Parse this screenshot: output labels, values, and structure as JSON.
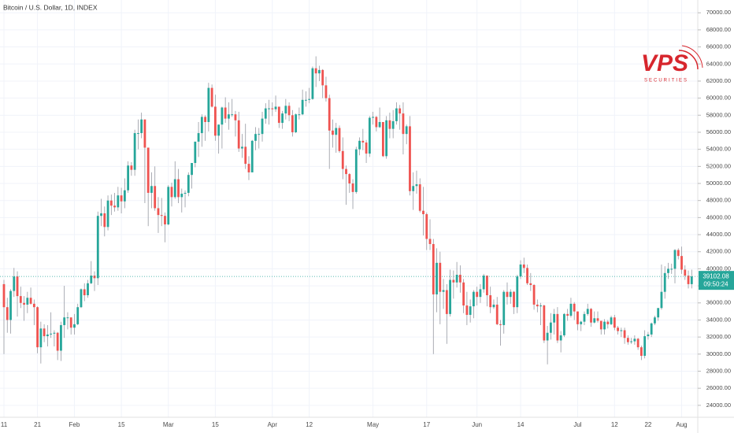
{
  "chart_data": {
    "type": "candlestick",
    "title": "Bitcoin / U.S. Dollar, 1D, INDEX",
    "up_color": "#26a69a",
    "down_color": "#ef5350",
    "grid": true,
    "countdown": "09:50:24",
    "logo": {
      "name": "VPS",
      "tagline": "SECURITIES"
    },
    "categories": [
      "11",
      null,
      null,
      null,
      null,
      null,
      null,
      null,
      null,
      null,
      "21",
      null,
      null,
      null,
      null,
      null,
      null,
      null,
      null,
      null,
      null,
      "Feb",
      null,
      null,
      null,
      null,
      null,
      null,
      null,
      null,
      null,
      null,
      null,
      null,
      null,
      "15",
      null,
      null,
      null,
      null,
      null,
      null,
      null,
      null,
      null,
      null,
      null,
      null,
      null,
      "Mar",
      null,
      null,
      null,
      null,
      null,
      null,
      null,
      null,
      null,
      null,
      null,
      null,
      null,
      "15",
      null,
      null,
      null,
      null,
      null,
      null,
      null,
      null,
      null,
      null,
      null,
      null,
      null,
      null,
      null,
      null,
      "Apr",
      null,
      null,
      null,
      null,
      null,
      null,
      null,
      null,
      null,
      null,
      "12",
      null,
      null,
      null,
      null,
      null,
      null,
      null,
      null,
      null,
      null,
      null,
      null,
      null,
      null,
      null,
      null,
      null,
      null,
      "May",
      null,
      null,
      null,
      null,
      null,
      null,
      null,
      null,
      null,
      null,
      null,
      null,
      null,
      null,
      null,
      "17",
      null,
      null,
      null,
      null,
      null,
      null,
      null,
      null,
      null,
      null,
      null,
      null,
      null,
      null,
      "Jun",
      null,
      null,
      null,
      null,
      null,
      null,
      null,
      null,
      null,
      null,
      null,
      null,
      "14",
      null,
      null,
      null,
      null,
      null,
      null,
      null,
      null,
      null,
      null,
      null,
      null,
      null,
      null,
      null,
      null,
      "Jul",
      null,
      null,
      null,
      null,
      null,
      null,
      null,
      null,
      null,
      null,
      "12",
      null,
      null,
      null,
      null,
      null,
      null,
      null,
      null,
      null,
      "22",
      null,
      null,
      null,
      null,
      null,
      null,
      null,
      null,
      null,
      "Aug",
      null,
      null,
      null
    ],
    "open": [
      38200,
      35500,
      34000,
      37400,
      39100,
      36800,
      36000,
      35800,
      36600,
      35900,
      35500,
      30800,
      33000,
      32100,
      32300,
      32400,
      32500,
      30400,
      33400,
      34300,
      34300,
      33100,
      33500,
      35500,
      37600,
      36900,
      38300,
      39200,
      38900,
      46200,
      46500,
      44900,
      48000,
      47400,
      47200,
      48600,
      47900,
      49200,
      52100,
      51600,
      55900,
      55900,
      57500,
      54200,
      48900,
      49700,
      47100,
      46300,
      46200,
      45200,
      49600,
      48400,
      50500,
      48400,
      48800,
      48900,
      51000,
      52400,
      54900,
      55900,
      57800,
      57200,
      61200,
      59000,
      55600,
      56900,
      58900,
      57600,
      58100,
      58100,
      57400,
      54100,
      54300,
      52300,
      51300,
      55000,
      55800,
      55800,
      57600,
      58800,
      58800,
      58700,
      59000,
      57100,
      58200,
      59100,
      58000,
      56000,
      58100,
      58100,
      59800,
      59800,
      59900,
      63500,
      62900,
      63300,
      61500,
      60000,
      56200,
      55700,
      56500,
      53800,
      51700,
      51100,
      50000,
      49000,
      54000,
      55000,
      54800,
      53500,
      57700,
      57800,
      56600,
      57200,
      53200,
      57400,
      56400,
      57300,
      58800,
      58200,
      55800,
      56700,
      49100,
      49700,
      49900,
      46800,
      46400,
      43500,
      42900,
      37000,
      40700,
      37300,
      37500,
      34700,
      38700,
      38400,
      39300,
      38400,
      35700,
      34600,
      35600,
      37300,
      36700,
      37600,
      39200,
      36900,
      35500,
      35800,
      33500,
      33400,
      37300,
      36700,
      37300,
      35500,
      39100,
      40500,
      40100,
      38300,
      38100,
      35800,
      35600,
      35700,
      31600,
      32500,
      33700,
      34700,
      31600,
      32200,
      34700,
      34500,
      35900,
      35000,
      33500,
      33800,
      34700,
      35300,
      33700,
      34200,
      33900,
      32900,
      33800,
      33500,
      34300,
      33100,
      32700,
      32800,
      31900,
      31400,
      31500,
      31800,
      30800,
      29800,
      32100,
      32300,
      33600,
      34300,
      35400,
      37300,
      39500,
      40000,
      40000,
      42200,
      41500,
      39900,
      39200,
      38200
    ],
    "high": [
      38700,
      36600,
      37600,
      40100,
      39700,
      37900,
      36800,
      37300,
      37800,
      36400,
      35600,
      33800,
      33500,
      33400,
      34900,
      32800,
      32600,
      33800,
      38000,
      34900,
      34300,
      34700,
      35900,
      37700,
      38300,
      38700,
      40900,
      39700,
      46700,
      48200,
      47300,
      48600,
      48700,
      48900,
      49600,
      49500,
      50600,
      52600,
      52500,
      56300,
      57500,
      58300,
      57500,
      54200,
      51300,
      52000,
      48400,
      48300,
      46600,
      49800,
      50100,
      52600,
      51700,
      49400,
      49200,
      51300,
      52400,
      54900,
      57200,
      58100,
      58000,
      61800,
      61600,
      60400,
      56900,
      59000,
      60100,
      59500,
      59900,
      58500,
      58400,
      55800,
      57000,
      53200,
      55100,
      56600,
      56500,
      58400,
      59400,
      59800,
      59500,
      60300,
      59000,
      58500,
      59900,
      59500,
      58600,
      58200,
      58900,
      61000,
      60800,
      61200,
      63700,
      64900,
      63800,
      63400,
      62500,
      60400,
      57500,
      57100,
      56800,
      55400,
      52100,
      51200,
      50500,
      54300,
      55400,
      56400,
      55100,
      57900,
      58400,
      57900,
      58900,
      57200,
      57900,
      58300,
      58600,
      59500,
      59200,
      59500,
      56900,
      57900,
      51300,
      51500,
      50600,
      49600,
      46600,
      45800,
      43500,
      42400,
      42000,
      38800,
      38200,
      39900,
      39800,
      40800,
      40400,
      38800,
      37300,
      36400,
      37500,
      37900,
      38200,
      39400,
      39200,
      37900,
      36400,
      36700,
      34000,
      37500,
      38400,
      37600,
      37400,
      39300,
      41000,
      41300,
      40500,
      39500,
      38200,
      36400,
      36000,
      35800,
      33300,
      34800,
      35300,
      35500,
      32700,
      34800,
      35300,
      36600,
      36100,
      35000,
      33900,
      35000,
      35900,
      35400,
      35000,
      35000,
      33900,
      34100,
      34000,
      34500,
      34600,
      33300,
      33100,
      33100,
      32200,
      31900,
      32200,
      31900,
      31000,
      32800,
      32600,
      33700,
      34500,
      35400,
      40500,
      40300,
      40700,
      40600,
      42300,
      42400,
      42600,
      40400,
      39800,
      39900
    ],
    "low": [
      30000,
      32500,
      32400,
      36700,
      34400,
      35400,
      33900,
      34800,
      35800,
      33400,
      30100,
      28900,
      31400,
      30900,
      31900,
      30900,
      29300,
      29200,
      31900,
      32900,
      32300,
      32300,
      33400,
      35400,
      36200,
      36600,
      38200,
      37400,
      38100,
      45000,
      43800,
      44500,
      46300,
      46700,
      46800,
      46500,
      47100,
      48900,
      50900,
      50900,
      54000,
      55300,
      47700,
      45000,
      47100,
      46800,
      44200,
      45000,
      43100,
      45100,
      47300,
      48200,
      47700,
      46600,
      47200,
      48500,
      49400,
      51900,
      53100,
      54300,
      55000,
      56100,
      58900,
      55000,
      53500,
      54100,
      57100,
      56300,
      57800,
      55500,
      53700,
      53000,
      51700,
      50400,
      51300,
      53900,
      54100,
      54900,
      57000,
      56900,
      57900,
      58400,
      56500,
      56400,
      57500,
      57300,
      55500,
      55900,
      57500,
      58000,
      59000,
      59400,
      59800,
      61300,
      62000,
      60000,
      59600,
      51700,
      54200,
      53600,
      53600,
      50500,
      47500,
      48900,
      47000,
      48800,
      53300,
      53900,
      52400,
      53100,
      56900,
      56100,
      56500,
      53100,
      52900,
      55300,
      55300,
      56900,
      56300,
      53400,
      54600,
      48600,
      46900,
      48800,
      46600,
      43900,
      42200,
      42200,
      30000,
      34900,
      33500,
      35300,
      31200,
      34400,
      36500,
      37800,
      37200,
      34800,
      33400,
      33700,
      34200,
      35700,
      36000,
      37200,
      35600,
      34800,
      35300,
      33400,
      31000,
      32400,
      35800,
      35900,
      34700,
      34800,
      38800,
      39500,
      38100,
      37400,
      35200,
      34900,
      33400,
      31300,
      28800,
      31700,
      32300,
      31300,
      30200,
      32000,
      33900,
      34300,
      34000,
      32800,
      32700,
      33400,
      34500,
      33200,
      33600,
      33700,
      32300,
      32300,
      33000,
      33400,
      32800,
      32300,
      32000,
      31200,
      31100,
      31200,
      31100,
      30500,
      29300,
      29500,
      31700,
      32000,
      33400,
      33900,
      35200,
      36500,
      38800,
      39400,
      38300,
      41100,
      39400,
      38700,
      37700,
      37700
    ],
    "close": [
      35500,
      34000,
      37400,
      39100,
      36800,
      36000,
      35800,
      36600,
      35900,
      35500,
      30800,
      33000,
      32100,
      32300,
      32400,
      32500,
      30400,
      33400,
      34300,
      34300,
      33100,
      33500,
      35500,
      37600,
      36900,
      38300,
      39200,
      38900,
      46200,
      46500,
      44900,
      48000,
      47400,
      47200,
      48600,
      47900,
      49200,
      52100,
      51600,
      55900,
      55900,
      57500,
      54200,
      48900,
      49700,
      47100,
      46300,
      46200,
      45200,
      49600,
      48400,
      50500,
      48400,
      48800,
      48900,
      51000,
      52400,
      54900,
      55900,
      57800,
      57200,
      61200,
      59000,
      55600,
      56900,
      58900,
      57600,
      58100,
      58100,
      57400,
      54100,
      54300,
      52300,
      51300,
      55000,
      55800,
      55800,
      57600,
      58800,
      58800,
      58700,
      59000,
      57100,
      58200,
      59100,
      58000,
      56000,
      58100,
      58100,
      59800,
      59800,
      59900,
      63500,
      62900,
      63300,
      61500,
      60000,
      56200,
      55700,
      56500,
      53800,
      51700,
      51100,
      50000,
      49000,
      54000,
      55000,
      54800,
      53500,
      57700,
      57800,
      56600,
      57200,
      53200,
      57400,
      56400,
      57300,
      58800,
      58200,
      55800,
      56700,
      49100,
      49700,
      49900,
      46800,
      46400,
      43500,
      42900,
      37000,
      40700,
      37300,
      37500,
      34700,
      38700,
      38400,
      39300,
      38400,
      35700,
      34600,
      35600,
      37300,
      36700,
      37600,
      39200,
      36900,
      35500,
      35800,
      33500,
      33400,
      37300,
      36700,
      37300,
      35500,
      39100,
      40500,
      40100,
      38300,
      38100,
      35800,
      35600,
      35700,
      31600,
      32500,
      33700,
      34700,
      31600,
      32200,
      34700,
      34500,
      35900,
      35000,
      33500,
      33800,
      34700,
      35300,
      33700,
      34200,
      33900,
      32900,
      33800,
      33500,
      34300,
      33100,
      32700,
      32800,
      31900,
      31400,
      31500,
      31800,
      30800,
      29800,
      32100,
      32300,
      33600,
      34300,
      35400,
      37300,
      39500,
      40000,
      40000,
      42200,
      41500,
      39900,
      39200,
      38200,
      39102.08
    ],
    "ylim": [
      22600,
      71500
    ],
    "yticks": [
      {
        "value": 24000,
        "label": "24000.00"
      },
      {
        "value": 26000,
        "label": "26000.00"
      },
      {
        "value": 28000,
        "label": "28000.00"
      },
      {
        "value": 30000,
        "label": "30000.00"
      },
      {
        "value": 32000,
        "label": "32000.00"
      },
      {
        "value": 34000,
        "label": "34000.00"
      },
      {
        "value": 36000,
        "label": "36000.00"
      },
      {
        "value": 38000,
        "label": "38000.00"
      },
      {
        "value": 40000,
        "label": "40000.00"
      },
      {
        "value": 42000,
        "label": "42000.00"
      },
      {
        "value": 44000,
        "label": "44000.00"
      },
      {
        "value": 46000,
        "label": "46000.00"
      },
      {
        "value": 48000,
        "label": "48000.00"
      },
      {
        "value": 50000,
        "label": "50000.00"
      },
      {
        "value": 52000,
        "label": "52000.00"
      },
      {
        "value": 54000,
        "label": "54000.00"
      },
      {
        "value": 56000,
        "label": "56000.00"
      },
      {
        "value": 58000,
        "label": "58000.00"
      },
      {
        "value": 60000,
        "label": "60000.00"
      },
      {
        "value": 62000,
        "label": "62000.00"
      },
      {
        "value": 64000,
        "label": "64000.00"
      },
      {
        "value": 66000,
        "label": "66000.00"
      },
      {
        "value": 68000,
        "label": "68000.00"
      },
      {
        "value": 70000,
        "label": "70000.00"
      }
    ]
  }
}
